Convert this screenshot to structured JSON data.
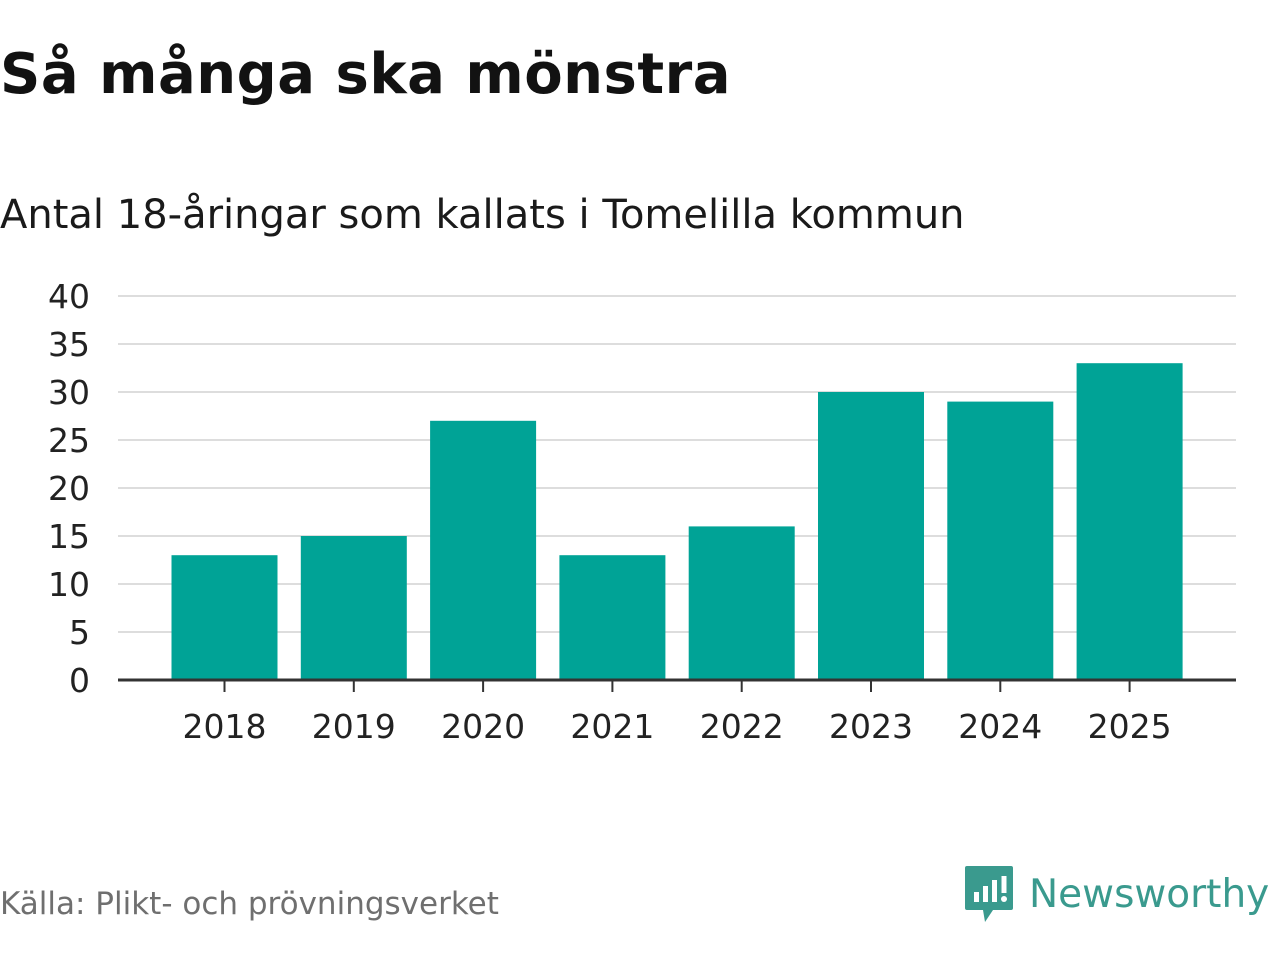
{
  "title": "Så många ska mönstra",
  "subtitle": "Antal 18-åringar som kallats i Tomelilla kommun",
  "source": "Källa: Plikt- och prövningsverket",
  "brand": {
    "name": "Newsworthy",
    "icon": "newsworthy-logo-icon",
    "color": "#3a9a8e"
  },
  "chart_data": {
    "type": "bar",
    "categories": [
      "2018",
      "2019",
      "2020",
      "2021",
      "2022",
      "2023",
      "2024",
      "2025"
    ],
    "values": [
      13,
      15,
      27,
      13,
      16,
      30,
      29,
      33
    ],
    "ylim": [
      0,
      40
    ],
    "yticks": [
      0,
      5,
      10,
      15,
      20,
      25,
      30,
      35,
      40
    ],
    "grid": true,
    "bar_color": "#00a396",
    "grid_color": "#dddddd",
    "axis_color": "#333333"
  }
}
